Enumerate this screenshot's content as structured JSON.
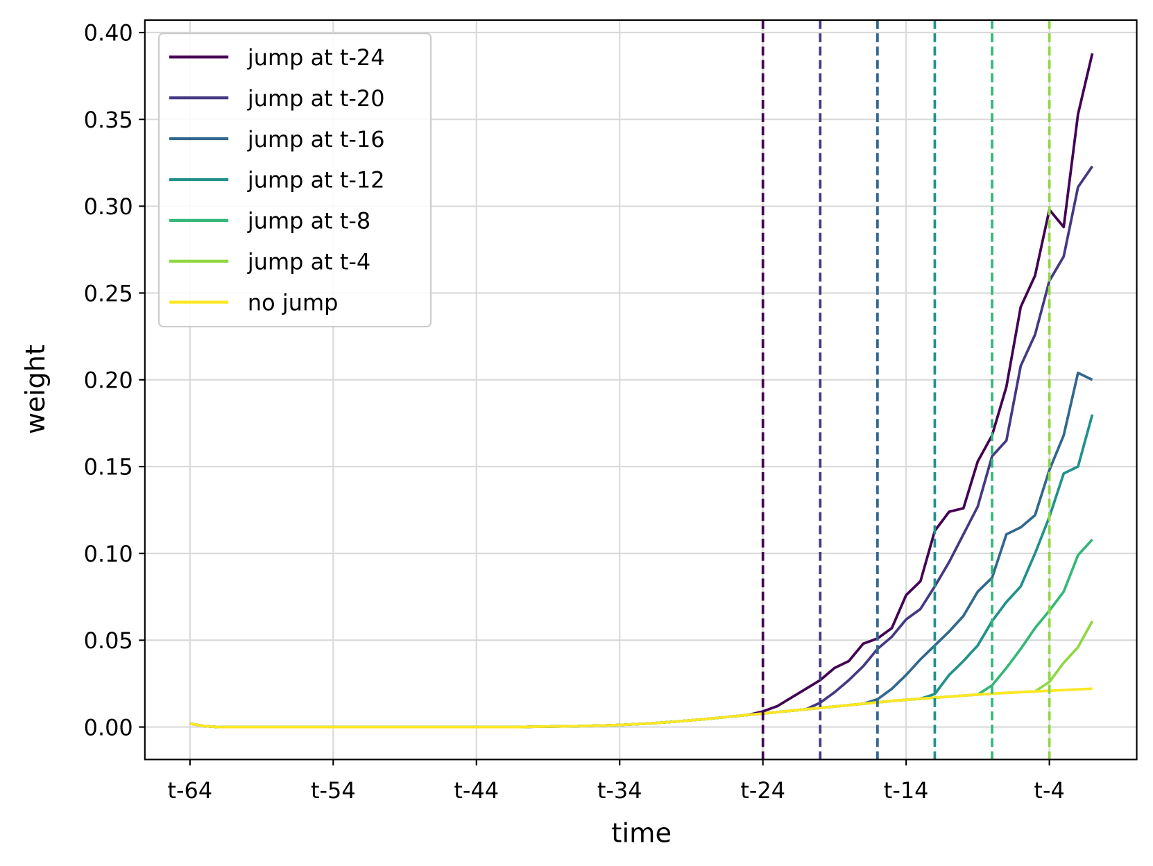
{
  "chart_data": {
    "type": "line",
    "x_label": "time",
    "y_label": "weight",
    "x": [
      -64,
      -63,
      -62,
      -61,
      -60,
      -59,
      -58,
      -57,
      -56,
      -55,
      -54,
      -53,
      -52,
      -51,
      -50,
      -49,
      -48,
      -47,
      -46,
      -45,
      -44,
      -43,
      -42,
      -41,
      -40,
      -39,
      -38,
      -37,
      -36,
      -35,
      -34,
      -33,
      -32,
      -31,
      -30,
      -29,
      -28,
      -27,
      -26,
      -25,
      -24,
      -23,
      -22,
      -21,
      -20,
      -19,
      -18,
      -17,
      -16,
      -15,
      -14,
      -13,
      -12,
      -11,
      -10,
      -9,
      -8,
      -7,
      -6,
      -5,
      -4,
      -3,
      -2,
      -1
    ],
    "series": [
      {
        "name": "jump at t-24",
        "color": "#440154",
        "values": [
          0.002,
          0.0005,
          0,
          0,
          0,
          0,
          0,
          0,
          0,
          0,
          0,
          0,
          0,
          0,
          0,
          0,
          0,
          0,
          0,
          0,
          0,
          0,
          0,
          0,
          0.0002,
          0.0003,
          0.0004,
          0.0005,
          0.0007,
          0.0009,
          0.0012,
          0.0016,
          0.002,
          0.0026,
          0.0032,
          0.0039,
          0.0046,
          0.0054,
          0.0062,
          0.007,
          0.009,
          0.012,
          0.017,
          0.022,
          0.027,
          0.034,
          0.038,
          0.048,
          0.051,
          0.057,
          0.076,
          0.084,
          0.113,
          0.124,
          0.126,
          0.153,
          0.168,
          0.196,
          0.242,
          0.26,
          0.298,
          0.288,
          0.353,
          0.388
        ]
      },
      {
        "name": "jump at t-20",
        "color": "#443983",
        "values": [
          0.002,
          0.0005,
          0,
          0,
          0,
          0,
          0,
          0,
          0,
          0,
          0,
          0,
          0,
          0,
          0,
          0,
          0,
          0,
          0,
          0,
          0,
          0,
          0,
          0,
          0.0002,
          0.0003,
          0.0004,
          0.0005,
          0.0007,
          0.0009,
          0.0012,
          0.0016,
          0.002,
          0.0026,
          0.0032,
          0.0039,
          0.0046,
          0.0054,
          0.0062,
          0.007,
          0.0078,
          0.0086,
          0.0094,
          0.0102,
          0.014,
          0.02,
          0.027,
          0.035,
          0.045,
          0.052,
          0.062,
          0.068,
          0.081,
          0.095,
          0.111,
          0.127,
          0.156,
          0.165,
          0.208,
          0.226,
          0.257,
          0.271,
          0.311,
          0.323
        ]
      },
      {
        "name": "jump at t-16",
        "color": "#31688e",
        "values": [
          0.002,
          0.0005,
          0,
          0,
          0,
          0,
          0,
          0,
          0,
          0,
          0,
          0,
          0,
          0,
          0,
          0,
          0,
          0,
          0,
          0,
          0,
          0,
          0,
          0,
          0.0002,
          0.0003,
          0.0004,
          0.0005,
          0.0007,
          0.0009,
          0.0012,
          0.0016,
          0.002,
          0.0026,
          0.0032,
          0.0039,
          0.0046,
          0.0054,
          0.0062,
          0.007,
          0.0078,
          0.0086,
          0.0094,
          0.0102,
          0.011,
          0.0118,
          0.0126,
          0.0134,
          0.016,
          0.022,
          0.03,
          0.039,
          0.047,
          0.055,
          0.064,
          0.078,
          0.086,
          0.111,
          0.115,
          0.122,
          0.148,
          0.168,
          0.204,
          0.2
        ]
      },
      {
        "name": "jump at t-12",
        "color": "#21918c",
        "values": [
          0.002,
          0.0005,
          0,
          0,
          0,
          0,
          0,
          0,
          0,
          0,
          0,
          0,
          0,
          0,
          0,
          0,
          0,
          0,
          0,
          0,
          0,
          0,
          0,
          0,
          0.0002,
          0.0003,
          0.0004,
          0.0005,
          0.0007,
          0.0009,
          0.0012,
          0.0016,
          0.002,
          0.0026,
          0.0032,
          0.0039,
          0.0046,
          0.0054,
          0.0062,
          0.007,
          0.0078,
          0.0086,
          0.0094,
          0.0102,
          0.011,
          0.0118,
          0.0126,
          0.0134,
          0.0142,
          0.015,
          0.0157,
          0.0163,
          0.019,
          0.03,
          0.038,
          0.047,
          0.061,
          0.072,
          0.081,
          0.1,
          0.121,
          0.146,
          0.15,
          0.18
        ]
      },
      {
        "name": "jump at t-8",
        "color": "#35b779",
        "values": [
          0.002,
          0.0005,
          0,
          0,
          0,
          0,
          0,
          0,
          0,
          0,
          0,
          0,
          0,
          0,
          0,
          0,
          0,
          0,
          0,
          0,
          0,
          0,
          0,
          0,
          0.0002,
          0.0003,
          0.0004,
          0.0005,
          0.0007,
          0.0009,
          0.0012,
          0.0016,
          0.002,
          0.0026,
          0.0032,
          0.0039,
          0.0046,
          0.0054,
          0.0062,
          0.007,
          0.0078,
          0.0086,
          0.0094,
          0.0102,
          0.011,
          0.0118,
          0.0126,
          0.0134,
          0.0142,
          0.015,
          0.0157,
          0.0163,
          0.0169,
          0.0175,
          0.0181,
          0.0187,
          0.024,
          0.034,
          0.045,
          0.057,
          0.067,
          0.078,
          0.099,
          0.108
        ]
      },
      {
        "name": "jump at t-4",
        "color": "#90d743",
        "values": [
          0.002,
          0.0005,
          0,
          0,
          0,
          0,
          0,
          0,
          0,
          0,
          0,
          0,
          0,
          0,
          0,
          0,
          0,
          0,
          0,
          0,
          0,
          0,
          0,
          0,
          0.0002,
          0.0003,
          0.0004,
          0.0005,
          0.0007,
          0.0009,
          0.0012,
          0.0016,
          0.002,
          0.0026,
          0.0032,
          0.0039,
          0.0046,
          0.0054,
          0.0062,
          0.007,
          0.0078,
          0.0086,
          0.0094,
          0.0102,
          0.011,
          0.0118,
          0.0126,
          0.0134,
          0.0142,
          0.015,
          0.0157,
          0.0163,
          0.0169,
          0.0175,
          0.0181,
          0.0187,
          0.0192,
          0.0197,
          0.0201,
          0.0205,
          0.026,
          0.037,
          0.046,
          0.061
        ]
      },
      {
        "name": "no jump",
        "color": "#fde725",
        "values": [
          0.002,
          0.0005,
          0,
          0,
          0,
          0,
          0,
          0,
          0,
          0,
          0,
          0,
          0,
          0,
          0,
          0,
          0,
          0,
          0,
          0,
          0,
          0,
          0,
          0,
          0.0002,
          0.0003,
          0.0004,
          0.0005,
          0.0007,
          0.0009,
          0.0012,
          0.0016,
          0.002,
          0.0026,
          0.0032,
          0.0039,
          0.0046,
          0.0054,
          0.0062,
          0.007,
          0.0078,
          0.0086,
          0.0094,
          0.0102,
          0.011,
          0.0118,
          0.0126,
          0.0134,
          0.0142,
          0.015,
          0.0157,
          0.0163,
          0.0169,
          0.0175,
          0.0181,
          0.0187,
          0.0192,
          0.0197,
          0.0201,
          0.0205,
          0.0209,
          0.0213,
          0.0217,
          0.0221
        ]
      }
    ],
    "vlines": [
      -24,
      -20,
      -16,
      -12,
      -8,
      -4
    ],
    "xlim": [
      -67.15,
      2.1
    ],
    "ylim": [
      -0.0187,
      0.4072
    ],
    "xticks": [
      {
        "value": -64,
        "label": "t-64"
      },
      {
        "value": -54,
        "label": "t-54"
      },
      {
        "value": -44,
        "label": "t-44"
      },
      {
        "value": -34,
        "label": "t-34"
      },
      {
        "value": -24,
        "label": "t-24"
      },
      {
        "value": -14,
        "label": "t-14"
      },
      {
        "value": -4,
        "label": "t-4"
      }
    ],
    "yticks": [
      {
        "value": 0,
        "label": "0.00"
      },
      {
        "value": 0.05,
        "label": "0.05"
      },
      {
        "value": 0.1,
        "label": "0.10"
      },
      {
        "value": 0.15,
        "label": "0.15"
      },
      {
        "value": 0.2,
        "label": "0.20"
      },
      {
        "value": 0.25,
        "label": "0.25"
      },
      {
        "value": 0.3,
        "label": "0.30"
      },
      {
        "value": 0.35,
        "label": "0.35"
      },
      {
        "value": 0.4,
        "label": "0.40"
      }
    ],
    "grid": true,
    "legend": "upper left"
  }
}
